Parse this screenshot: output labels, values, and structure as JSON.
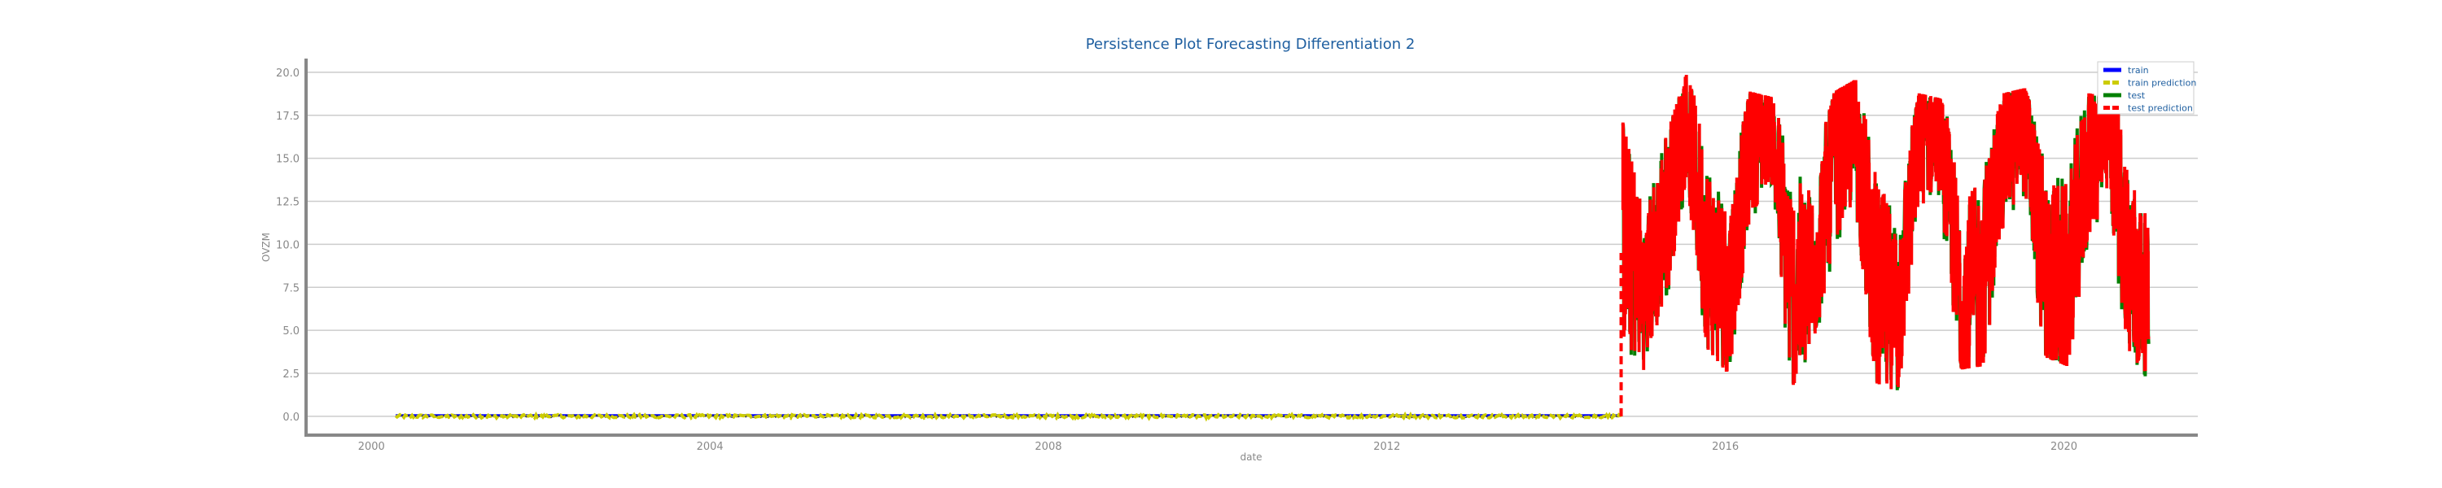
{
  "chart_data": {
    "type": "line",
    "title": "Persistence Plot Forecasting Differentiation 2",
    "xlabel": "date",
    "ylabel": "OVZM",
    "xlim": [
      "1999-04-01",
      "2021-08-01"
    ],
    "ylim": [
      -1.0,
      20.8
    ],
    "x_ticks": [
      {
        "date": "2000-01-01",
        "label": "2000"
      },
      {
        "date": "2004-01-01",
        "label": "2004"
      },
      {
        "date": "2008-01-01",
        "label": "2008"
      },
      {
        "date": "2012-01-01",
        "label": "2012"
      },
      {
        "date": "2016-01-01",
        "label": "2016"
      },
      {
        "date": "2020-01-01",
        "label": "2020"
      }
    ],
    "y_ticks": [
      "0.0",
      "2.5",
      "5.0",
      "7.5",
      "10.0",
      "12.5",
      "15.0",
      "17.5",
      "20.0"
    ],
    "grid": "horizontal",
    "legend_position": "top-right",
    "series": [
      {
        "name": "train",
        "color": "#0000ff",
        "style": "solid",
        "x": [
          "2000-04-15",
          "2014-10-10"
        ],
        "values": [
          0.05,
          0.05
        ]
      },
      {
        "name": "train prediction",
        "color": "#cccc00",
        "style": "dashed",
        "x": [
          "2000-04-15",
          "2014-10-10"
        ],
        "values": [
          0.0,
          0.0
        ]
      },
      {
        "name": "test",
        "color": "#008000",
        "style": "solid",
        "x": [
          "2014-10-15",
          "2015-01-15",
          "2015-04-15",
          "2015-07-15",
          "2015-10-15",
          "2016-01-15",
          "2016-04-15",
          "2016-07-15",
          "2016-10-15",
          "2017-01-15",
          "2017-04-15",
          "2017-07-15",
          "2017-10-15",
          "2018-01-15",
          "2018-04-15",
          "2018-07-15",
          "2018-10-15",
          "2019-01-15",
          "2019-04-15",
          "2019-07-15",
          "2019-10-15",
          "2020-01-15",
          "2020-04-15",
          "2020-07-15",
          "2020-10-15",
          "2021-01-01"
        ],
        "values": [
          12.0,
          7.0,
          11.5,
          17.5,
          9.0,
          7.0,
          15.5,
          17.0,
          7.0,
          8.5,
          15.0,
          16.5,
          7.0,
          6.0,
          16.0,
          16.5,
          6.5,
          8.0,
          15.5,
          17.0,
          8.0,
          7.5,
          15.0,
          16.5,
          8.0,
          7.0
        ]
      },
      {
        "name": "test prediction",
        "color": "#ff0000",
        "style": "dashed",
        "x": [
          "2014-10-15",
          "2015-01-15",
          "2015-04-15",
          "2015-07-15",
          "2015-10-15",
          "2016-01-15",
          "2016-04-15",
          "2016-07-15",
          "2016-10-15",
          "2017-01-15",
          "2017-04-15",
          "2017-07-15",
          "2017-10-15",
          "2018-01-15",
          "2018-04-15",
          "2018-07-15",
          "2018-10-15",
          "2019-01-15",
          "2019-04-15",
          "2019-07-15",
          "2019-10-15",
          "2020-01-15",
          "2020-04-15",
          "2020-07-15",
          "2020-10-15",
          "2021-01-01"
        ],
        "values": [
          12.0,
          7.0,
          11.5,
          17.5,
          9.0,
          7.0,
          15.5,
          17.0,
          7.0,
          8.5,
          15.0,
          16.5,
          7.0,
          6.0,
          16.0,
          16.5,
          6.5,
          8.0,
          15.5,
          17.0,
          8.0,
          7.5,
          15.0,
          16.5,
          8.0,
          7.0
        ],
        "range_min": [
          0.0,
          2.5,
          5.0,
          12.0,
          4.0,
          2.5,
          10.5,
          12.0,
          1.8,
          4.0,
          9.0,
          10.5,
          2.0,
          1.5,
          10.5,
          11.5,
          2.8,
          3.0,
          9.5,
          11.0,
          3.5,
          3.0,
          9.0,
          10.0,
          3.5,
          2.0
        ],
        "range_max": [
          17.0,
          11.5,
          16.0,
          19.8,
          16.5,
          13.5,
          18.8,
          18.5,
          15.5,
          14.5,
          18.8,
          19.5,
          16.0,
          13.0,
          18.7,
          18.4,
          15.5,
          15.0,
          18.7,
          19.0,
          16.0,
          15.5,
          18.7,
          18.5,
          17.0,
          10.5
        ]
      }
    ]
  }
}
